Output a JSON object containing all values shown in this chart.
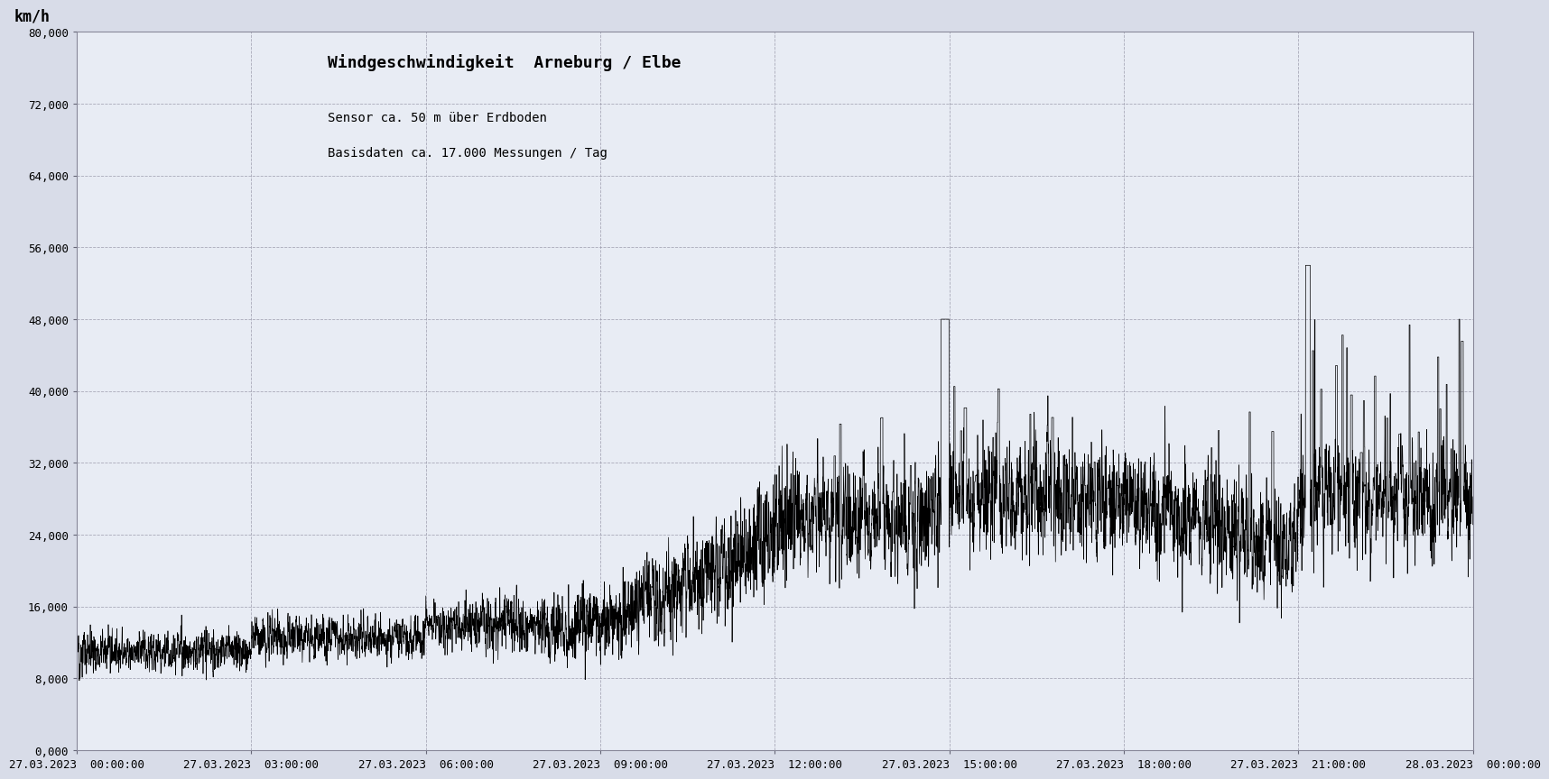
{
  "title": "Windgeschwindigkeit  Arneburg / Elbe",
  "subtitle_line1": "Sensor ca. 50 m über Erdboden",
  "subtitle_line2": "Basisdaten ca. 17.000 Messungen / Tag",
  "ylabel": "km/h",
  "ylim": [
    0,
    80000
  ],
  "yticks": [
    0,
    8000,
    16000,
    24000,
    32000,
    40000,
    48000,
    56000,
    64000,
    72000,
    80000
  ],
  "yticklabels": [
    "0,000",
    "8,000",
    "16,000",
    "24,000",
    "32,000",
    "40,000",
    "48,000",
    "56,000",
    "64,000",
    "72,000",
    "80,000"
  ],
  "bg_color": "#d8dce8",
  "plot_bg_color": "#e8ecf4",
  "line_color": "#000000",
  "grid_color": "#9999aa",
  "title_font": "DejaVu Sans Mono",
  "label_font": "DejaVu Sans Mono",
  "n_points": 17280,
  "xtick_positions": [
    0,
    2160,
    4320,
    6480,
    8640,
    10800,
    12960,
    15120,
    17280
  ],
  "xtick_labels": [
    "27.03.2023  00:00:00",
    "27.03.2023  03:00:00",
    "27.03.2023  06:00:00",
    "27.03.2023  09:00:00",
    "27.03.2023  12:00:00",
    "27.03.2023  15:00:00",
    "27.03.2023  18:00:00",
    "27.03.2023  21:00:00",
    "28.03.2023  00:00:00"
  ]
}
